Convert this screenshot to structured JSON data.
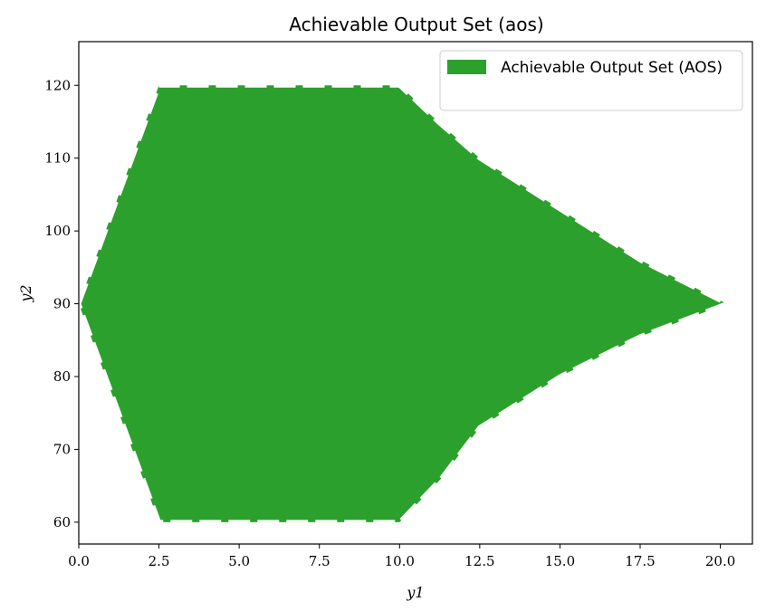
{
  "chart_data": {
    "type": "area",
    "title": "Achievable Output Set (aos)",
    "xlabel": "y1",
    "ylabel": "y2",
    "xlim": [
      0,
      21
    ],
    "ylim": [
      57,
      126
    ],
    "xticks": [
      "0.0",
      "2.5",
      "5.0",
      "7.5",
      "10.0",
      "12.5",
      "15.0",
      "17.5",
      "20.0"
    ],
    "yticks": [
      "60",
      "70",
      "80",
      "90",
      "100",
      "110",
      "120"
    ],
    "grid": false,
    "legend_position": "top-right",
    "series": [
      {
        "name": "Achievable Output Set (AOS)",
        "color": "#2ca02c",
        "edge_color": "#ffffff",
        "edge_style": "dashed",
        "polygon": [
          [
            0,
            90
          ],
          [
            2.5,
            120
          ],
          [
            10.0,
            120
          ],
          [
            11.2,
            115
          ],
          [
            12.5,
            110
          ],
          [
            15.0,
            103
          ],
          [
            17.5,
            96
          ],
          [
            20.2,
            90
          ],
          [
            17.5,
            85.5
          ],
          [
            15.0,
            80
          ],
          [
            12.5,
            73
          ],
          [
            11.3,
            66
          ],
          [
            10.0,
            60
          ],
          [
            2.5,
            60
          ],
          [
            0,
            90
          ]
        ]
      }
    ]
  }
}
